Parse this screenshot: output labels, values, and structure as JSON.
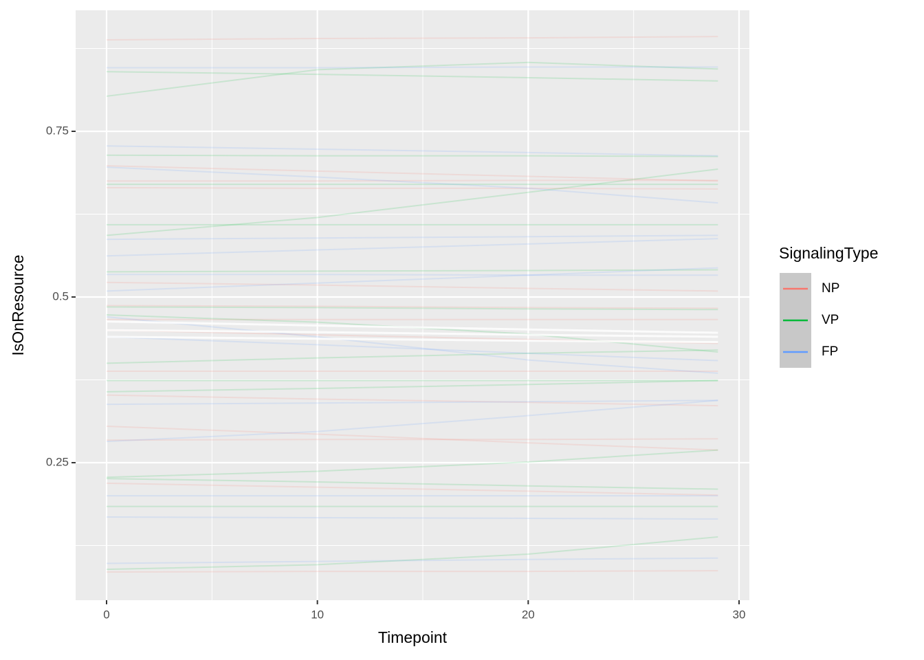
{
  "chart_data": {
    "type": "line",
    "x_label": "Timepoint",
    "y_label": "IsOnResource",
    "legend_title": "SignalingType",
    "x": [
      0,
      10,
      20,
      29
    ],
    "xlim": [
      -1.467,
      30.49
    ],
    "xticks": [
      0,
      10,
      20,
      30
    ],
    "minor_xticks": [
      5,
      15,
      25
    ],
    "ylim": [
      0.0425,
      0.9326
    ],
    "yticks": [
      0.25,
      0.5,
      0.75
    ],
    "minor_yticks": [
      0.125,
      0.375,
      0.625,
      0.875
    ],
    "yticks_labels_note_free": true,
    "grid": true,
    "legend_position": "right",
    "line_opacity": 0.15,
    "series": [
      {
        "name": "NP",
        "color": "#F8766D",
        "values": [
          0.888,
          0.89,
          0.891,
          0.893
        ]
      },
      {
        "name": "VP",
        "color": "#00BA38",
        "values": [
          0.803,
          0.843,
          0.854,
          0.844
        ]
      },
      {
        "name": "FP",
        "color": "#619CFF",
        "values": [
          0.846,
          0.846,
          0.847,
          0.847
        ]
      },
      {
        "name": "NP",
        "color": "#F8766D",
        "values": [
          0.675,
          0.675,
          0.676,
          0.676
        ]
      },
      {
        "name": "NP",
        "color": "#F8766D",
        "values": [
          0.698,
          0.69,
          0.682,
          0.675
        ]
      },
      {
        "name": "NP",
        "color": "#F8766D",
        "values": [
          0.665,
          0.664,
          0.664,
          0.663
        ]
      },
      {
        "name": "NP",
        "color": "#F8766D",
        "values": [
          0.522,
          0.518,
          0.513,
          0.509
        ]
      },
      {
        "name": "NP",
        "color": "#F8766D",
        "values": [
          0.487,
          0.486,
          0.484,
          0.483
        ]
      },
      {
        "name": "NP",
        "color": "#F8766D",
        "values": [
          0.466,
          0.466,
          0.466,
          0.466
        ]
      },
      {
        "name": "NP",
        "color": "#F8766D",
        "values": [
          0.45,
          0.443,
          0.436,
          0.43
        ]
      },
      {
        "name": "NP",
        "color": "#F8766D",
        "values": [
          0.352,
          0.346,
          0.341,
          0.336
        ]
      },
      {
        "name": "NP",
        "color": "#F8766D",
        "values": [
          0.305,
          0.293,
          0.28,
          0.269
        ]
      },
      {
        "name": "NP",
        "color": "#F8766D",
        "values": [
          0.284,
          0.285,
          0.285,
          0.286
        ]
      },
      {
        "name": "NP",
        "color": "#F8766D",
        "values": [
          0.219,
          0.213,
          0.207,
          0.201
        ]
      },
      {
        "name": "NP",
        "color": "#F8766D",
        "values": [
          0.085,
          0.086,
          0.086,
          0.087
        ]
      },
      {
        "name": "NP",
        "color": "#F8766D",
        "values": [
          0.388,
          0.388,
          0.388,
          0.388
        ]
      },
      {
        "name": "VP",
        "color": "#00BA38",
        "values": [
          0.84,
          0.836,
          0.831,
          0.826
        ]
      },
      {
        "name": "VP",
        "color": "#00BA38",
        "values": [
          0.714,
          0.713,
          0.713,
          0.712
        ]
      },
      {
        "name": "VP",
        "color": "#00BA38",
        "values": [
          0.593,
          0.62,
          0.658,
          0.693
        ]
      },
      {
        "name": "VP",
        "color": "#00BA38",
        "values": [
          0.609,
          0.609,
          0.609,
          0.609
        ]
      },
      {
        "name": "VP",
        "color": "#00BA38",
        "values": [
          0.67,
          0.67,
          0.67,
          0.67
        ]
      },
      {
        "name": "VP",
        "color": "#00BA38",
        "values": [
          0.538,
          0.539,
          0.54,
          0.541
        ]
      },
      {
        "name": "VP",
        "color": "#00BA38",
        "values": [
          0.485,
          0.484,
          0.482,
          0.481
        ]
      },
      {
        "name": "VP",
        "color": "#00BA38",
        "values": [
          0.473,
          0.462,
          0.444,
          0.417
        ]
      },
      {
        "name": "VP",
        "color": "#00BA38",
        "values": [
          0.4,
          0.408,
          0.415,
          0.42
        ]
      },
      {
        "name": "VP",
        "color": "#00BA38",
        "values": [
          0.374,
          0.374,
          0.374,
          0.374
        ]
      },
      {
        "name": "VP",
        "color": "#00BA38",
        "values": [
          0.357,
          0.362,
          0.368,
          0.374
        ]
      },
      {
        "name": "VP",
        "color": "#00BA38",
        "values": [
          0.228,
          0.237,
          0.251,
          0.269
        ]
      },
      {
        "name": "VP",
        "color": "#00BA38",
        "values": [
          0.226,
          0.221,
          0.215,
          0.21
        ]
      },
      {
        "name": "VP",
        "color": "#00BA38",
        "values": [
          0.184,
          0.184,
          0.184,
          0.184
        ]
      },
      {
        "name": "VP",
        "color": "#00BA38",
        "values": [
          0.089,
          0.096,
          0.112,
          0.138
        ]
      },
      {
        "name": "FP",
        "color": "#619CFF",
        "values": [
          0.728,
          0.723,
          0.718,
          0.713
        ]
      },
      {
        "name": "FP",
        "color": "#619CFF",
        "values": [
          0.696,
          0.681,
          0.664,
          0.642
        ]
      },
      {
        "name": "FP",
        "color": "#619CFF",
        "values": [
          0.587,
          0.589,
          0.591,
          0.593
        ]
      },
      {
        "name": "FP",
        "color": "#619CFF",
        "values": [
          0.562,
          0.571,
          0.58,
          0.588
        ]
      },
      {
        "name": "FP",
        "color": "#619CFF",
        "values": [
          0.509,
          0.521,
          0.533,
          0.544
        ]
      },
      {
        "name": "FP",
        "color": "#619CFF",
        "values": [
          0.534,
          0.534,
          0.533,
          0.533
        ]
      },
      {
        "name": "FP",
        "color": "#619CFF",
        "values": [
          0.44,
          0.428,
          0.415,
          0.404
        ]
      },
      {
        "name": "FP",
        "color": "#619CFF",
        "values": [
          0.338,
          0.34,
          0.342,
          0.344
        ]
      },
      {
        "name": "FP",
        "color": "#619CFF",
        "values": [
          0.282,
          0.297,
          0.321,
          0.344
        ]
      },
      {
        "name": "FP",
        "color": "#619CFF",
        "values": [
          0.2,
          0.2,
          0.2,
          0.2
        ]
      },
      {
        "name": "FP",
        "color": "#619CFF",
        "values": [
          0.168,
          0.167,
          0.166,
          0.165
        ]
      },
      {
        "name": "FP",
        "color": "#619CFF",
        "values": [
          0.098,
          0.101,
          0.104,
          0.106
        ]
      },
      {
        "name": "FP",
        "color": "#619CFF",
        "values": [
          0.47,
          0.44,
          0.405,
          0.385
        ]
      }
    ],
    "highlight_lines": [
      {
        "color": "#ffffff",
        "values": [
          0.463,
          0.457,
          0.451,
          0.446
        ]
      },
      {
        "color": "#ffffff",
        "values": [
          0.45,
          0.447,
          0.443,
          0.44
        ]
      },
      {
        "color": "#ffffff",
        "values": [
          0.44,
          0.437,
          0.434,
          0.432
        ]
      }
    ]
  }
}
